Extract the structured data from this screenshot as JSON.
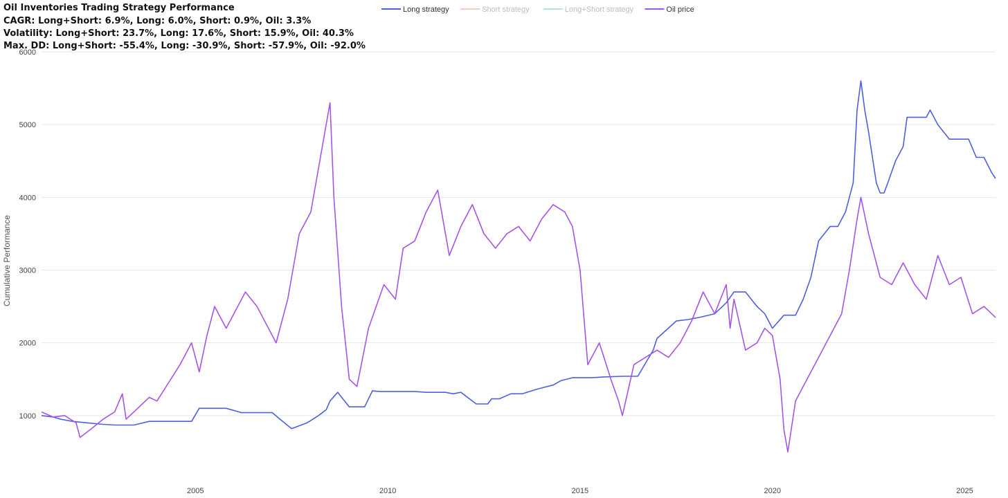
{
  "chart_data": {
    "type": "line",
    "title": "Oil Inventories Trading Strategy Performance",
    "subtitle_lines": [
      "CAGR: Long+Short: 6.9%, Long: 6.0%, Short: 0.9%, Oil: 3.3%",
      "Volatility: Long+Short: 23.7%, Long: 17.6%, Short: 15.9%, Oil: 40.3%",
      "Max. DD: Long+Short: -55.4%, Long: -30.9%, Short: -57.9%, Oil: -92.0%"
    ],
    "xlabel": "",
    "ylabel": "Cumulative Performance",
    "xlim": [
      2001.0,
      2025.8
    ],
    "ylim": [
      0,
      6000
    ],
    "xticks": [
      {
        "value": 2005,
        "label": "2005"
      },
      {
        "value": 2010,
        "label": "2010"
      },
      {
        "value": 2015,
        "label": "2015"
      },
      {
        "value": 2020,
        "label": "2020"
      },
      {
        "value": 2025,
        "label": "2025"
      }
    ],
    "yticks": [
      {
        "value": 1000,
        "label": "1000"
      },
      {
        "value": 2000,
        "label": "2000"
      },
      {
        "value": 3000,
        "label": "3000"
      },
      {
        "value": 4000,
        "label": "4000"
      },
      {
        "value": 5000,
        "label": "5000"
      },
      {
        "value": 6000,
        "label": "6000"
      }
    ],
    "grid": true,
    "legend": {
      "position": "top-center"
    },
    "series": [
      {
        "name": "Long strategy",
        "color": "#4c5fe0",
        "visible": true,
        "x": [
          2001.0,
          2001.3,
          2001.5,
          2001.8,
          2002.2,
          2002.6,
          2002.9,
          2003.4,
          2003.8,
          2004.3,
          2004.8,
          2004.9,
          2005.1,
          2005.4,
          2005.8,
          2006.2,
          2006.8,
          2007.0,
          2007.2,
          2007.5,
          2007.9,
          2008.2,
          2008.4,
          2008.5,
          2008.7,
          2009.0,
          2009.4,
          2009.6,
          2009.8,
          2010.2,
          2010.7,
          2011.0,
          2011.5,
          2011.7,
          2011.9,
          2012.3,
          2012.6,
          2012.7,
          2012.9,
          2013.2,
          2013.5,
          2013.8,
          2014.0,
          2014.3,
          2014.5,
          2014.8,
          2015.0,
          2015.3,
          2015.6,
          2016.1,
          2016.3,
          2016.5,
          2016.9,
          2017.0,
          2017.5,
          2017.8,
          2018.1,
          2018.5,
          2018.8,
          2019.0,
          2019.3,
          2019.6,
          2019.8,
          2020.0,
          2020.3,
          2020.6,
          2020.8,
          2021.0,
          2021.2,
          2021.5,
          2021.7,
          2021.9,
          2022.1,
          2022.2,
          2022.3,
          2022.4,
          2022.5,
          2022.7,
          2022.8,
          2022.9,
          2023.0,
          2023.2,
          2023.4,
          2023.5,
          2023.7,
          2024.0,
          2024.1,
          2024.3,
          2024.6,
          2024.9,
          2025.1,
          2025.3,
          2025.5,
          2025.7,
          2025.8
        ],
        "y": [
          1000,
          980,
          950,
          920,
          900,
          880,
          870,
          870,
          920,
          920,
          920,
          920,
          1100,
          1100,
          1100,
          1040,
          1040,
          1040,
          950,
          820,
          900,
          1000,
          1080,
          1200,
          1320,
          1120,
          1120,
          1340,
          1330,
          1330,
          1330,
          1320,
          1320,
          1300,
          1320,
          1160,
          1160,
          1230,
          1230,
          1300,
          1300,
          1350,
          1380,
          1420,
          1480,
          1520,
          1520,
          1520,
          1530,
          1540,
          1540,
          1540,
          1900,
          2060,
          2300,
          2320,
          2350,
          2400,
          2550,
          2700,
          2700,
          2500,
          2400,
          2200,
          2380,
          2380,
          2600,
          2900,
          3400,
          3600,
          3600,
          3800,
          4200,
          5200,
          5600,
          5200,
          4900,
          4200,
          4060,
          4060,
          4200,
          4500,
          4700,
          5100,
          5100,
          5100,
          5200,
          5000,
          4800,
          4800,
          4800,
          4550,
          4550,
          4340,
          4260
        ]
      },
      {
        "name": "Short strategy",
        "color": "#f0a08e",
        "visible": false,
        "x": [],
        "y": []
      },
      {
        "name": "Long+Short strategy",
        "color": "#6fd6ae",
        "visible": false,
        "x": [],
        "y": []
      },
      {
        "name": "Oil price",
        "color": "#a554ea",
        "visible": true,
        "x": [
          2001.0,
          2001.3,
          2001.6,
          2001.9,
          2002.0,
          2002.3,
          2002.6,
          2002.9,
          2003.1,
          2003.2,
          2003.5,
          2003.8,
          2004.0,
          2004.3,
          2004.6,
          2004.9,
          2005.1,
          2005.3,
          2005.5,
          2005.8,
          2006.0,
          2006.3,
          2006.6,
          2006.9,
          2007.1,
          2007.4,
          2007.7,
          2008.0,
          2008.3,
          2008.5,
          2008.6,
          2008.8,
          2009.0,
          2009.2,
          2009.5,
          2009.9,
          2010.2,
          2010.4,
          2010.7,
          2011.0,
          2011.3,
          2011.6,
          2011.9,
          2012.2,
          2012.5,
          2012.8,
          2013.1,
          2013.4,
          2013.7,
          2014.0,
          2014.3,
          2014.6,
          2014.8,
          2015.0,
          2015.2,
          2015.5,
          2015.8,
          2016.0,
          2016.1,
          2016.4,
          2016.7,
          2017.0,
          2017.3,
          2017.6,
          2017.9,
          2018.2,
          2018.5,
          2018.8,
          2018.9,
          2019.0,
          2019.3,
          2019.6,
          2019.8,
          2020.0,
          2020.2,
          2020.3,
          2020.4,
          2020.6,
          2020.9,
          2021.2,
          2021.5,
          2021.8,
          2022.0,
          2022.2,
          2022.3,
          2022.5,
          2022.8,
          2023.1,
          2023.4,
          2023.7,
          2024.0,
          2024.3,
          2024.6,
          2024.9,
          2025.2,
          2025.5,
          2025.8
        ],
        "y": [
          1050,
          980,
          1000,
          900,
          700,
          820,
          950,
          1050,
          1300,
          950,
          1100,
          1250,
          1200,
          1450,
          1700,
          2000,
          1600,
          2100,
          2500,
          2200,
          2400,
          2700,
          2500,
          2200,
          2000,
          2600,
          3500,
          3800,
          4700,
          5300,
          4000,
          2500,
          1500,
          1400,
          2200,
          2800,
          2600,
          3300,
          3400,
          3800,
          4100,
          3200,
          3600,
          3900,
          3500,
          3300,
          3500,
          3600,
          3400,
          3700,
          3900,
          3800,
          3600,
          3000,
          1700,
          2000,
          1500,
          1200,
          1000,
          1700,
          1800,
          1900,
          1800,
          2000,
          2300,
          2700,
          2400,
          2800,
          2200,
          2600,
          1900,
          2000,
          2200,
          2100,
          1500,
          800,
          500,
          1200,
          1500,
          1800,
          2100,
          2400,
          3000,
          3700,
          4000,
          3500,
          2900,
          2800,
          3100,
          2800,
          2600,
          3200,
          2800,
          2900,
          2400,
          2500,
          2350
        ]
      }
    ]
  }
}
